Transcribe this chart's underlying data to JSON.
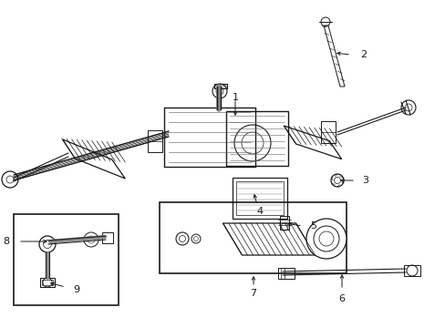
{
  "background_color": "#ffffff",
  "line_color": "#1a1a1a",
  "fig_width": 4.89,
  "fig_height": 3.6,
  "dpi": 100,
  "img_extent": [
    0,
    489,
    0,
    360
  ]
}
